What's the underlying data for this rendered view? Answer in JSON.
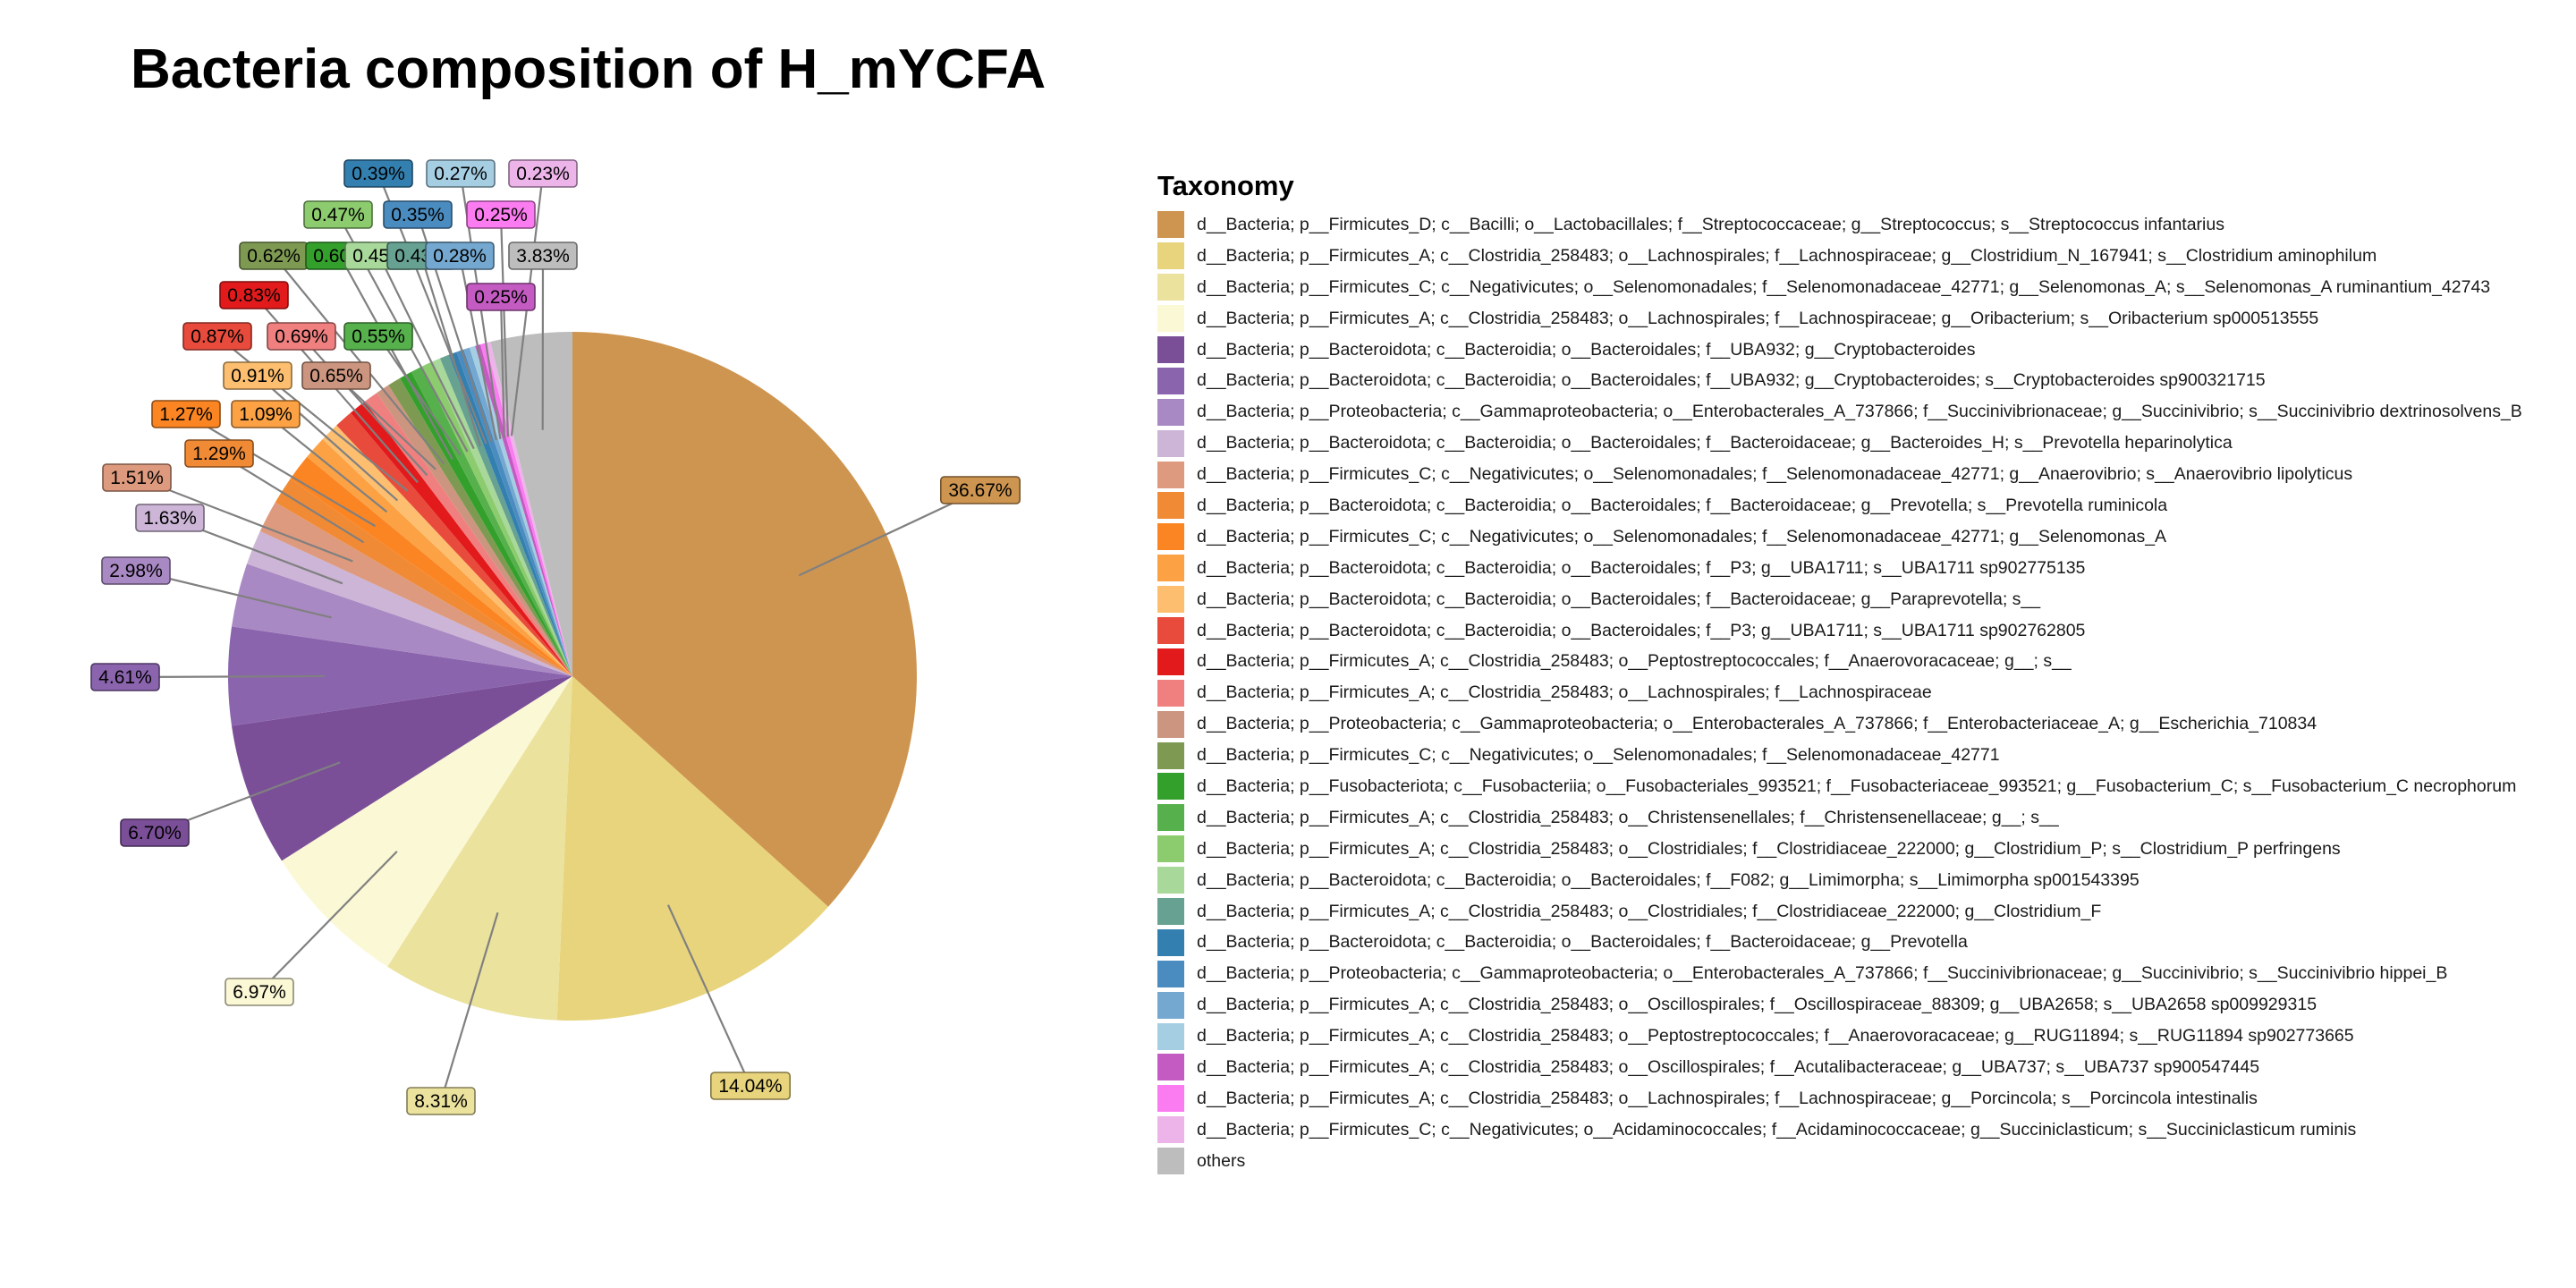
{
  "chart_data": {
    "type": "pie",
    "title": "Bacteria composition of H_mYCFA",
    "legend_title": "Taxonomy",
    "legend_position": "right",
    "slices": [
      {
        "label": "d__Bacteria; p__Firmicutes_D; c__Bacilli; o__Lactobacillales; f__Streptococcaceae; g__Streptococcus; s__Streptococcus infantarius",
        "value": 36.67,
        "display": "36.67%",
        "color": "#CE9550"
      },
      {
        "label": "d__Bacteria; p__Firmicutes_A; c__Clostridia_258483; o__Lachnospirales; f__Lachnospiraceae; g__Clostridium_N_167941; s__Clostridium aminophilum",
        "value": 14.04,
        "display": "14.04%",
        "color": "#E8D47C"
      },
      {
        "label": "d__Bacteria; p__Firmicutes_C; c__Negativicutes; o__Selenomonadales; f__Selenomonadaceae_42771; g__Selenomonas_A; s__Selenomonas_A ruminantium_42743",
        "value": 8.31,
        "display": "8.31%",
        "color": "#EBE29D"
      },
      {
        "label": "d__Bacteria; p__Firmicutes_A; c__Clostridia_258483; o__Lachnospirales; f__Lachnospiraceae; g__Oribacterium; s__Oribacterium sp000513555",
        "value": 6.97,
        "display": "6.97%",
        "color": "#FBF8D5"
      },
      {
        "label": "d__Bacteria; p__Bacteroidota; c__Bacteroidia; o__Bacteroidales; f__UBA932; g__Cryptobacteroides",
        "value": 6.7,
        "display": "6.70%",
        "color": "#7A4F98"
      },
      {
        "label": "d__Bacteria; p__Bacteroidota; c__Bacteroidia; o__Bacteroidales; f__UBA932; g__Cryptobacteroides; s__Cryptobacteroides sp900321715",
        "value": 4.61,
        "display": "4.61%",
        "color": "#8B64AE"
      },
      {
        "label": "d__Bacteria; p__Proteobacteria; c__Gammaproteobacteria; o__Enterobacterales_A_737866; f__Succinivibrionaceae; g__Succinivibrio; s__Succinivibrio dextrinosolvens_B",
        "value": 2.98,
        "display": "2.98%",
        "color": "#A989C3"
      },
      {
        "label": "d__Bacteria; p__Bacteroidota; c__Bacteroidia; o__Bacteroidales; f__Bacteroidaceae; g__Bacteroides_H; s__Prevotella heparinolytica",
        "value": 1.63,
        "display": "1.63%",
        "color": "#CCB5D6"
      },
      {
        "label": "d__Bacteria; p__Firmicutes_C; c__Negativicutes; o__Selenomonadales; f__Selenomonadaceae_42771; g__Anaerovibrio; s__Anaerovibrio lipolyticus",
        "value": 1.51,
        "display": "1.51%",
        "color": "#DE9A7E"
      },
      {
        "label": "d__Bacteria; p__Bacteroidota; c__Bacteroidia; o__Bacteroidales; f__Bacteroidaceae; g__Prevotella; s__Prevotella ruminicola",
        "value": 1.29,
        "display": "1.29%",
        "color": "#F18A34"
      },
      {
        "label": "d__Bacteria; p__Firmicutes_C; c__Negativicutes; o__Selenomonadales; f__Selenomonadaceae_42771; g__Selenomonas_A",
        "value": 1.27,
        "display": "1.27%",
        "color": "#FB8522"
      },
      {
        "label": "d__Bacteria; p__Bacteroidota; c__Bacteroidia; o__Bacteroidales; f__P3; g__UBA1711; s__UBA1711 sp902775135",
        "value": 1.09,
        "display": "1.09%",
        "color": "#FCA244"
      },
      {
        "label": "d__Bacteria; p__Bacteroidota; c__Bacteroidia; o__Bacteroidales; f__Bacteroidaceae; g__Paraprevotella; s__",
        "value": 0.91,
        "display": "0.91%",
        "color": "#FDBF6F"
      },
      {
        "label": "d__Bacteria; p__Bacteroidota; c__Bacteroidia; o__Bacteroidales; f__P3; g__UBA1711; s__UBA1711 sp902762805",
        "value": 0.87,
        "display": "0.87%",
        "color": "#E84B3C"
      },
      {
        "label": "d__Bacteria; p__Firmicutes_A; c__Clostridia_258483; o__Peptostreptococcales; f__Anaerovoracaceae; g__; s__",
        "value": 0.83,
        "display": "0.83%",
        "color": "#E31A1C"
      },
      {
        "label": "d__Bacteria; p__Firmicutes_A; c__Clostridia_258483; o__Lachnospirales; f__Lachnospiraceae",
        "value": 0.69,
        "display": "0.69%",
        "color": "#F08080"
      },
      {
        "label": "d__Bacteria; p__Proteobacteria; c__Gammaproteobacteria; o__Enterobacterales_A_737866; f__Enterobacteriaceae_A; g__Escherichia_710834",
        "value": 0.65,
        "display": "0.65%",
        "color": "#CC9580"
      },
      {
        "label": "d__Bacteria; p__Firmicutes_C; c__Negativicutes; o__Selenomonadales; f__Selenomonadaceae_42771",
        "value": 0.62,
        "display": "0.62%",
        "color": "#7E9A52"
      },
      {
        "label": "d__Bacteria; p__Fusobacteriota; c__Fusobacteriia; o__Fusobacteriales_993521; f__Fusobacteriaceae_993521; g__Fusobacterium_C; s__Fusobacterium_C necrophorum",
        "value": 0.6,
        "display": "0.60%",
        "color": "#33A02C"
      },
      {
        "label": "d__Bacteria; p__Firmicutes_A; c__Clostridia_258483; o__Christensenellales; f__Christensenellaceae; g__; s__",
        "value": 0.55,
        "display": "0.55%",
        "color": "#56B04C"
      },
      {
        "label": "d__Bacteria; p__Firmicutes_A; c__Clostridia_258483; o__Clostridiales; f__Clostridiaceae_222000; g__Clostridium_P; s__Clostridium_P perfringens",
        "value": 0.47,
        "display": "0.47%",
        "color": "#8CCB6E"
      },
      {
        "label": "d__Bacteria; p__Bacteroidota; c__Bacteroidia; o__Bacteroidales; f__F082; g__Limimorpha; s__Limimorpha sp001543395",
        "value": 0.45,
        "display": "0.45%",
        "color": "#A8D89A"
      },
      {
        "label": "d__Bacteria; p__Firmicutes_A; c__Clostridia_258483; o__Clostridiales; f__Clostridiaceae_222000; g__Clostridium_F",
        "value": 0.43,
        "display": "0.43%",
        "color": "#66A191"
      },
      {
        "label": "d__Bacteria; p__Bacteroidota; c__Bacteroidia; o__Bacteroidales; f__Bacteroidaceae; g__Prevotella",
        "value": 0.39,
        "display": "0.39%",
        "color": "#3380B0"
      },
      {
        "label": "d__Bacteria; p__Proteobacteria; c__Gammaproteobacteria; o__Enterobacterales_A_737866; f__Succinivibrionaceae; g__Succinivibrio; s__Succinivibrio hippei_B",
        "value": 0.35,
        "display": "0.35%",
        "color": "#4A8CC0"
      },
      {
        "label": "d__Bacteria; p__Firmicutes_A; c__Clostridia_258483; o__Oscillospirales; f__Oscillospiraceae_88309; g__UBA2658; s__UBA2658 sp009929315",
        "value": 0.28,
        "display": "0.28%",
        "color": "#75A8D0"
      },
      {
        "label": "d__Bacteria; p__Firmicutes_A; c__Clostridia_258483; o__Peptostreptococcales; f__Anaerovoracaceae; g__RUG11894; s__RUG11894 sp902773665",
        "value": 0.27,
        "display": "0.27%",
        "color": "#A6CEE3"
      },
      {
        "label": "d__Bacteria; p__Firmicutes_A; c__Clostridia_258483; o__Oscillospirales; f__Acutalibacteraceae; g__UBA737; s__UBA737 sp900547445",
        "value": 0.25,
        "display": "0.25%",
        "color": "#C45BC2"
      },
      {
        "label": "d__Bacteria; p__Firmicutes_A; c__Clostridia_258483; o__Lachnospirales; f__Lachnospiraceae; g__Porcincola; s__Porcincola intestinalis",
        "value": 0.25,
        "display": "0.25%",
        "color": "#FB7CF0"
      },
      {
        "label": "d__Bacteria; p__Firmicutes_C; c__Negativicutes; o__Acidaminococcales; f__Acidaminococcaceae; g__Succiniclasticum; s__Succiniclasticum ruminis",
        "value": 0.23,
        "display": "0.23%",
        "color": "#EDB4EA"
      },
      {
        "label": "others",
        "value": 3.83,
        "display": "3.83%",
        "color": "#BDBDBD"
      }
    ]
  }
}
